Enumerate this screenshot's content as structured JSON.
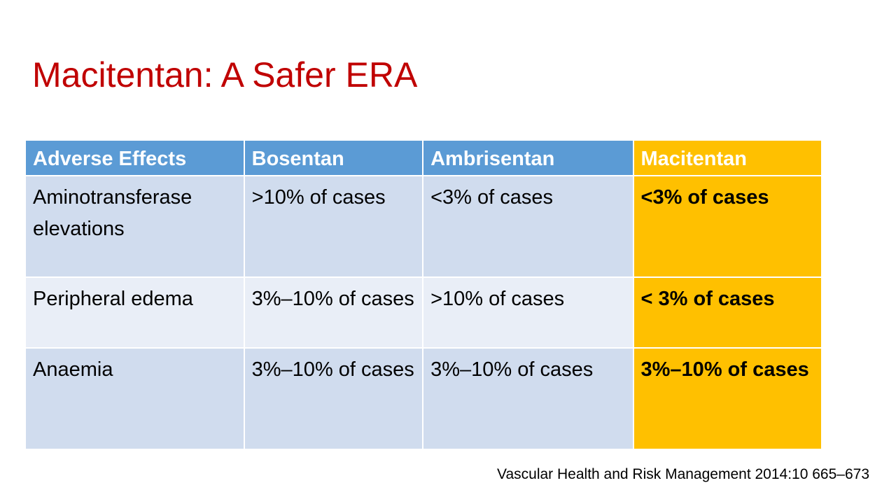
{
  "title": "Macitentan: A Safer ERA",
  "table": {
    "header": [
      "Adverse Effects",
      "Bosentan",
      "Ambrisentan",
      "Macitentan"
    ],
    "rows": [
      [
        "Aminotransferase elevations",
        ">10% of cases",
        "<3% of cases",
        "<3% of cases"
      ],
      [
        "Peripheral edema",
        "3%–10% of cases",
        ">10% of cases",
        "< 3% of cases"
      ],
      [
        "Anaemia",
        "3%–10% of cases",
        "3%–10% of cases",
        "3%–10% of cases"
      ]
    ]
  },
  "source": "Vascular Health and Risk Management 2014:10 665–673"
}
